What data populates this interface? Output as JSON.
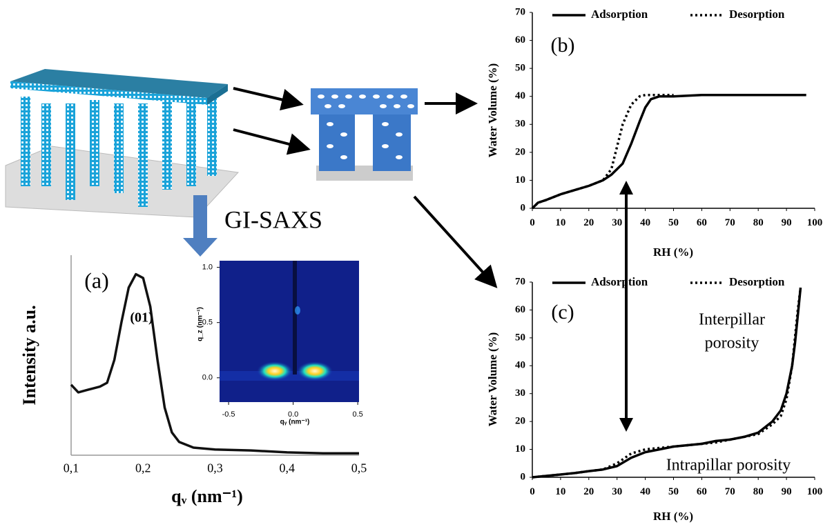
{
  "diagram": {
    "method_label": "GI-SAXS"
  },
  "chart_data": [
    {
      "type": "line",
      "title": "(a)",
      "x_label": "qᵥ (nm⁻¹)",
      "y_label": "Intensity a.u.",
      "annotations": [
        "(01)"
      ],
      "x": [
        0.1,
        0.11,
        0.12,
        0.13,
        0.14,
        0.15,
        0.16,
        0.17,
        0.18,
        0.19,
        0.2,
        0.21,
        0.22,
        0.23,
        0.24,
        0.25,
        0.27,
        0.3,
        0.35,
        0.4,
        0.45,
        0.5
      ],
      "series": [
        {
          "name": null,
          "color": "#111111",
          "dash": "solid",
          "values": [
            0.37,
            0.33,
            0.34,
            0.35,
            0.36,
            0.38,
            0.5,
            0.7,
            0.88,
            0.95,
            0.93,
            0.78,
            0.5,
            0.25,
            0.12,
            0.07,
            0.04,
            0.03,
            0.025,
            0.015,
            0.01,
            0.01
          ]
        }
      ],
      "xlim": [
        0.1,
        0.5
      ],
      "ylim": [
        0,
        1.05
      ],
      "xticks": [
        {
          "value": 0.1,
          "label": "0,1"
        },
        {
          "value": 0.2,
          "label": "0,2"
        },
        {
          "value": 0.3,
          "label": "0,3"
        },
        {
          "value": 0.4,
          "label": "0,4"
        },
        {
          "value": 0.5,
          "label": "0,5"
        }
      ]
    },
    {
      "type": "image",
      "x_label": "qᵧ (nm⁻¹)",
      "y_label": "q_z (nm⁻¹)",
      "xlim": [
        -0.57,
        0.51
      ],
      "ylim": [
        -0.22,
        1.06
      ],
      "xticks": [
        -0.5,
        {
          "value": 0,
          "label": "0.0"
        },
        0.5
      ],
      "yticks": [
        {
          "value": 0,
          "label": "0.0"
        },
        0.5,
        {
          "value": 1,
          "label": "1.0"
        }
      ]
    },
    {
      "type": "line",
      "title": "(b)",
      "x_label": "RH (%)",
      "y_label": "Water Volume (%)",
      "legend": "top",
      "x": [
        0,
        2,
        5,
        10,
        15,
        20,
        25,
        28,
        30,
        32,
        35,
        38,
        40,
        42,
        45,
        50,
        60,
        70,
        80,
        90,
        97
      ],
      "series": [
        {
          "name": "Adsorption",
          "color": "#000000",
          "dash": "solid",
          "values": [
            0,
            2,
            3,
            5,
            6.5,
            8,
            10,
            12,
            14,
            16,
            23,
            31,
            36,
            39,
            40,
            40,
            40.5,
            40.5,
            40.5,
            40.5,
            40.5
          ]
        },
        {
          "name": "Desorption",
          "color": "#000000",
          "dash": "dotted",
          "values": [
            0,
            2,
            3,
            5,
            6.5,
            8,
            10,
            14,
            22,
            30,
            37,
            40,
            40.5,
            40.5,
            40.5,
            40.5,
            null,
            null,
            null,
            null,
            null
          ]
        }
      ],
      "xlim": [
        0,
        100
      ],
      "ylim": [
        0,
        70
      ],
      "xticks": [
        0,
        10,
        20,
        30,
        40,
        50,
        60,
        70,
        80,
        90,
        100
      ],
      "yticks": [
        0,
        10,
        20,
        30,
        40,
        50,
        60,
        70
      ]
    },
    {
      "type": "line",
      "title": "(c)",
      "x_label": "RH (%)",
      "y_label": "Water Volume (%)",
      "legend": "top",
      "annotations": [
        [
          "Interpillar",
          "porosity"
        ],
        "Intrapillar porosity"
      ],
      "x": [
        0,
        5,
        10,
        15,
        20,
        25,
        30,
        35,
        40,
        45,
        50,
        55,
        60,
        65,
        70,
        75,
        80,
        85,
        88,
        90,
        92,
        93,
        94,
        95
      ],
      "series": [
        {
          "name": "Adsorption",
          "color": "#000000",
          "dash": "solid",
          "values": [
            0,
            0.5,
            1,
            1.5,
            2.2,
            2.8,
            4,
            7,
            9,
            10,
            11,
            11.5,
            12,
            13,
            13.5,
            14.5,
            16,
            20,
            24,
            30,
            40,
            48,
            58,
            68
          ]
        },
        {
          "name": "Desorption",
          "color": "#000000",
          "dash": "dotted",
          "values": [
            0,
            0.5,
            1,
            1.5,
            2.2,
            2.8,
            5,
            8.5,
            10,
            10.5,
            11,
            11.5,
            12,
            12.5,
            13.5,
            14.5,
            15.5,
            19,
            22,
            28,
            40,
            50,
            60,
            68
          ]
        }
      ],
      "xlim": [
        0,
        100
      ],
      "ylim": [
        0,
        70
      ],
      "xticks": [
        0,
        10,
        20,
        30,
        40,
        50,
        60,
        70,
        80,
        90,
        100
      ],
      "yticks": [
        0,
        10,
        20,
        30,
        40,
        50,
        60,
        70
      ]
    }
  ]
}
